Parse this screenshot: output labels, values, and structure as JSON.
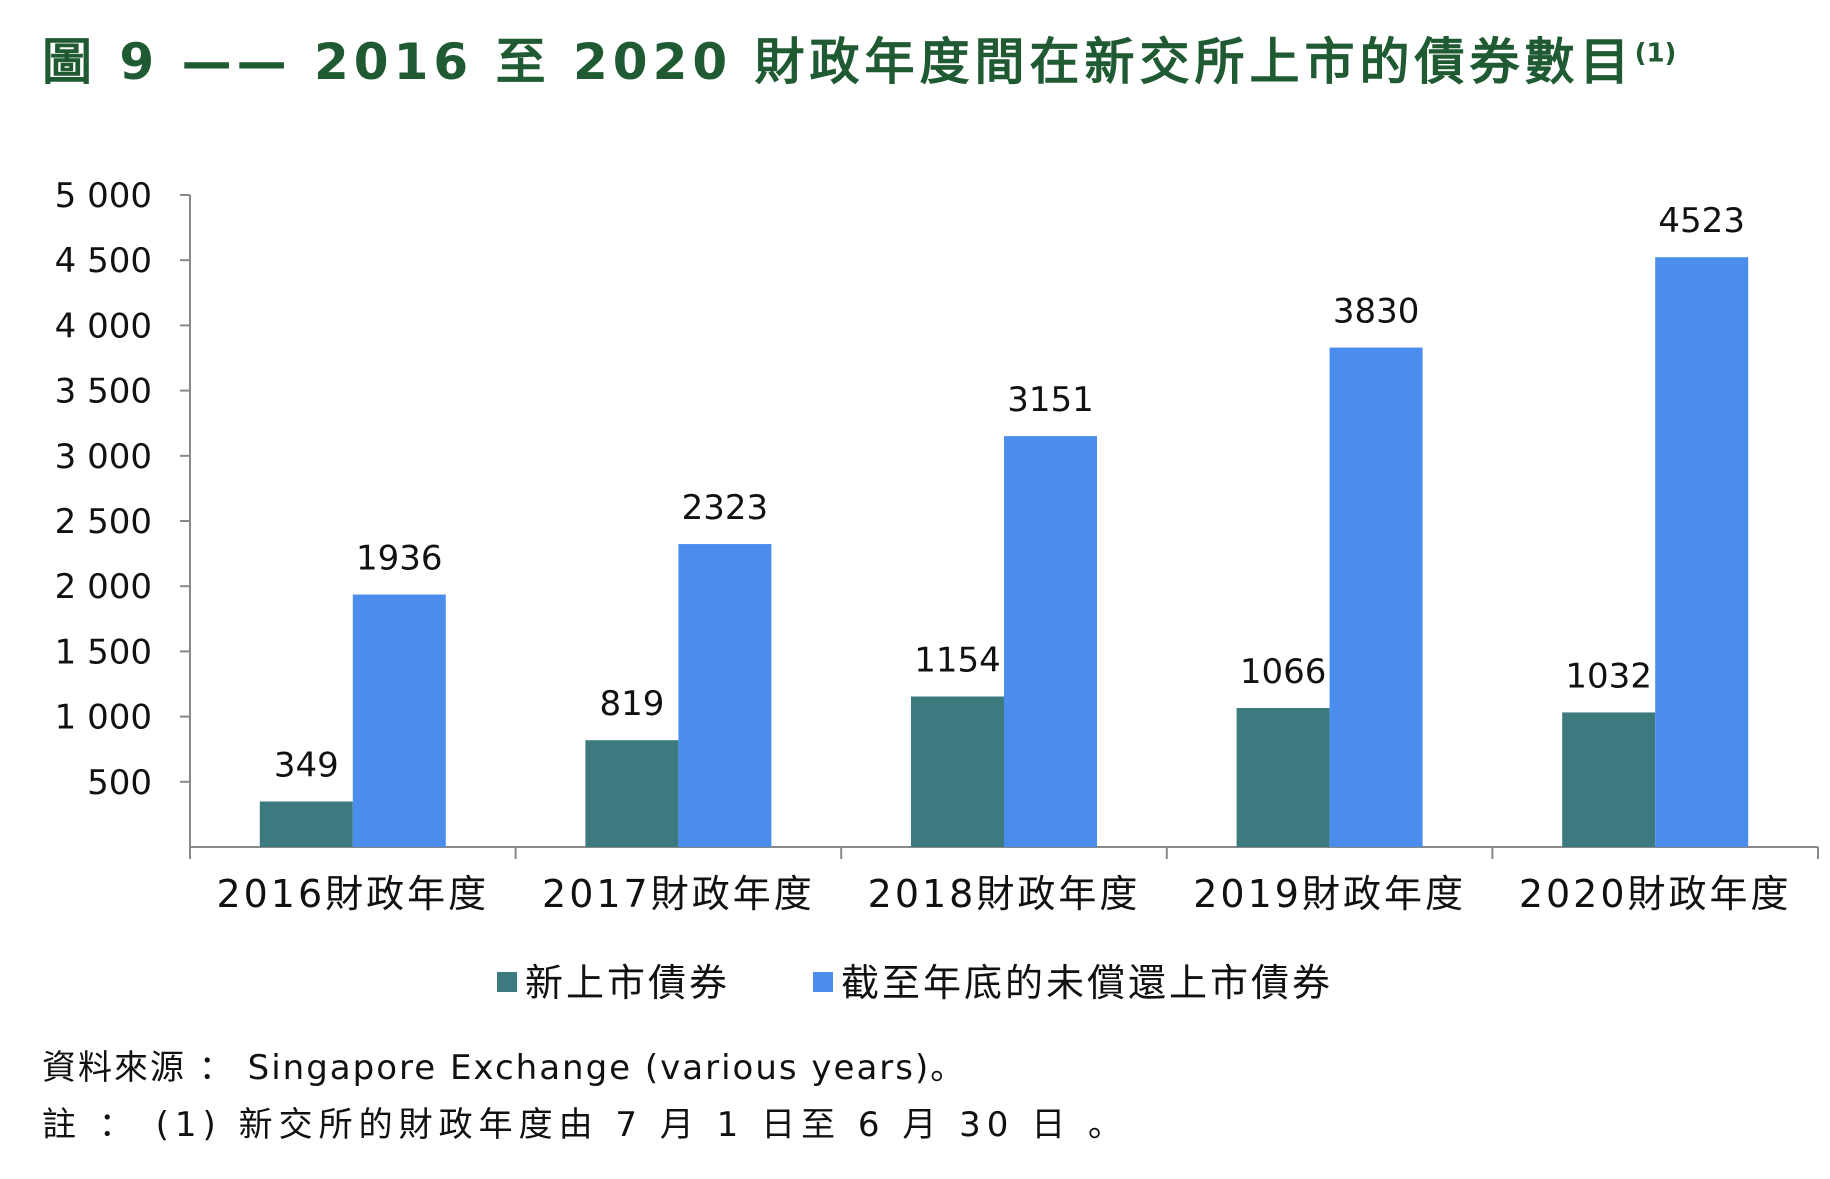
{
  "figure": {
    "title": "圖 9 —— 2016 至 2020 財政年度間在新交所上市的債券數目",
    "title_note_mark": "(1)"
  },
  "chart_data": {
    "type": "bar",
    "categories": [
      "2016財政年度",
      "2017財政年度",
      "2018財政年度",
      "2019財政年度",
      "2020財政年度"
    ],
    "series": [
      {
        "name": "新上市債券",
        "values": [
          349,
          819,
          1154,
          1066,
          1032
        ],
        "color": "#3d7a80"
      },
      {
        "name": "截至年底的未償還上市債券",
        "values": [
          1936,
          2323,
          3151,
          3830,
          4523
        ],
        "color": "#4a8ded"
      }
    ],
    "ylim": [
      0,
      5000
    ],
    "yticks": [
      500,
      1000,
      1500,
      2000,
      2500,
      3000,
      3500,
      4000,
      4500,
      5000
    ],
    "ytick_labels": [
      "500",
      "1 000",
      "1 500",
      "2 000",
      "2 500",
      "3 000",
      "3 500",
      "4 000",
      "4 500",
      "5 000"
    ],
    "data_labels": true,
    "grid": false,
    "legend_position": "bottom"
  },
  "source": "資料來源 ： Singapore Exchange (various years)。",
  "note": "註 ： (1) 新交所的財政年度由 7 月 1 日至 6 月 30 日 。"
}
